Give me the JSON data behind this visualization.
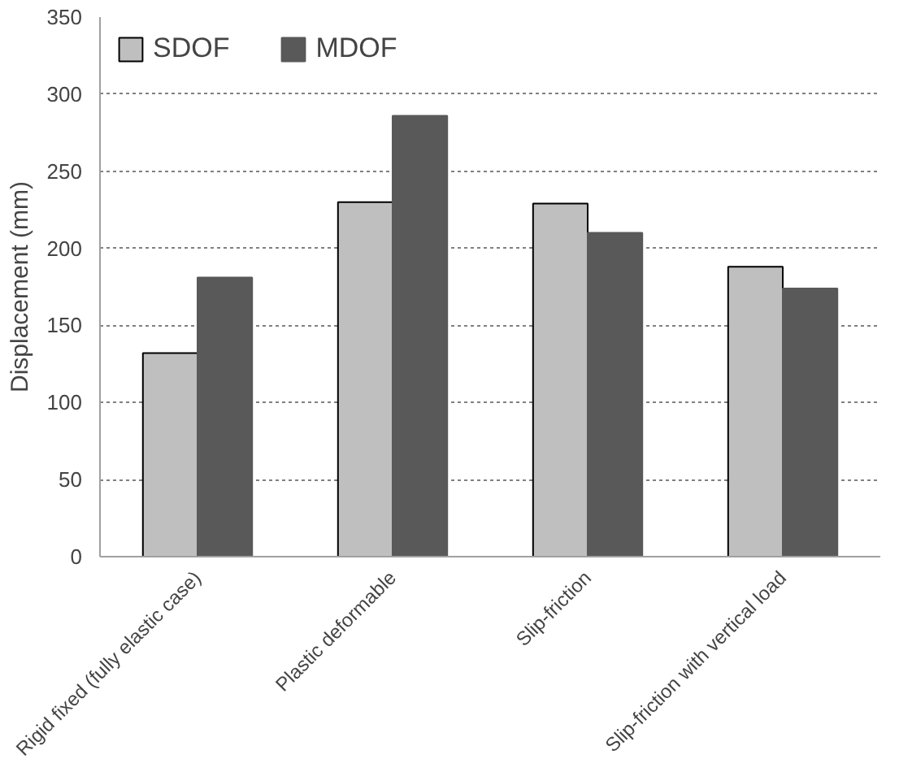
{
  "chart_data": {
    "type": "bar",
    "ylabel": "Displacement (mm)",
    "categories": [
      "Rigid fixed (fully elastic case)",
      "Plastic deformable",
      "Slip-friction",
      "Slip-friction with vertical load"
    ],
    "series": [
      {
        "name": "SDOF",
        "color": "#bfbfbf",
        "values": [
          132,
          230,
          229,
          188
        ]
      },
      {
        "name": "MDOF",
        "color": "#595959",
        "values": [
          181,
          286,
          210,
          174
        ]
      }
    ],
    "ylim": [
      0,
      350
    ],
    "yticks": [
      0,
      50,
      100,
      150,
      200,
      250,
      300,
      350
    ],
    "grid": "y",
    "legend": "top left"
  }
}
